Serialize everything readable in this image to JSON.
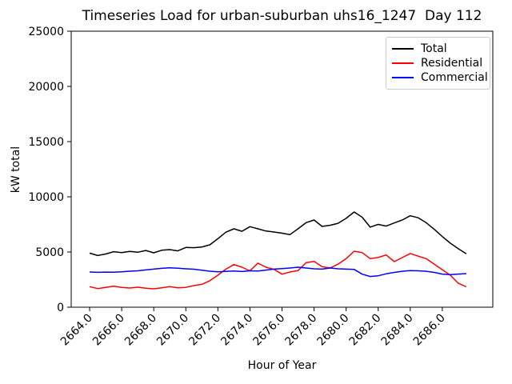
{
  "chart_data": {
    "type": "line",
    "title": "Timeseries Load for urban-suburban uhs16_1247  Day 112",
    "xlabel": "Hour of Year",
    "ylabel": "kW total",
    "xlim": [
      2662.85,
      2689.15
    ],
    "ylim": [
      0,
      25000
    ],
    "grid": false,
    "legend_position": "upper right",
    "xtick_labels": [
      "2664.0",
      "2666.0",
      "2668.0",
      "2670.0",
      "2672.0",
      "2674.0",
      "2676.0",
      "2678.0",
      "2680.0",
      "2682.0",
      "2684.0",
      "2686.0"
    ],
    "ytick_labels": [
      "0",
      "5000",
      "10000",
      "15000",
      "20000",
      "25000"
    ],
    "x": [
      2664.0,
      2664.5,
      2665.0,
      2665.5,
      2666.0,
      2666.5,
      2667.0,
      2667.5,
      2668.0,
      2668.5,
      2669.0,
      2669.5,
      2670.0,
      2670.5,
      2671.0,
      2671.5,
      2672.0,
      2672.5,
      2673.0,
      2673.5,
      2674.0,
      2674.5,
      2675.0,
      2675.5,
      2676.0,
      2676.5,
      2677.0,
      2677.5,
      2678.0,
      2678.5,
      2679.0,
      2679.5,
      2680.0,
      2680.5,
      2681.0,
      2681.5,
      2682.0,
      2682.5,
      2683.0,
      2683.5,
      2684.0,
      2684.5,
      2685.0,
      2685.5,
      2686.0,
      2686.5,
      2687.0,
      2687.5
    ],
    "series": [
      {
        "name": "Total",
        "color": "#000000",
        "values": [
          4900,
          4680,
          4820,
          5030,
          4950,
          5050,
          4980,
          5140,
          4930,
          5160,
          5220,
          5100,
          5410,
          5390,
          5450,
          5650,
          6200,
          6800,
          7100,
          6880,
          7300,
          7100,
          6900,
          6810,
          6700,
          6580,
          7100,
          7660,
          7900,
          7320,
          7420,
          7600,
          8050,
          8620,
          8150,
          7250,
          7500,
          7350,
          7630,
          7900,
          8280,
          8100,
          7650,
          7050,
          6400,
          5800,
          5300,
          4830
        ]
      },
      {
        "name": "Residential",
        "color": "#ff0000",
        "values": [
          1860,
          1690,
          1790,
          1900,
          1790,
          1740,
          1810,
          1720,
          1670,
          1760,
          1860,
          1760,
          1800,
          1960,
          2070,
          2400,
          2900,
          3450,
          3860,
          3620,
          3300,
          3990,
          3620,
          3430,
          2990,
          3190,
          3310,
          4030,
          4150,
          3670,
          3550,
          3900,
          4400,
          5070,
          4950,
          4400,
          4500,
          4730,
          4130,
          4490,
          4860,
          4620,
          4400,
          3890,
          3400,
          2900,
          2170,
          1850
        ]
      },
      {
        "name": "Commercial",
        "color": "#0000ff",
        "values": [
          3190,
          3160,
          3180,
          3170,
          3200,
          3260,
          3300,
          3380,
          3450,
          3520,
          3570,
          3530,
          3480,
          3440,
          3350,
          3260,
          3200,
          3240,
          3280,
          3230,
          3300,
          3280,
          3360,
          3450,
          3500,
          3550,
          3620,
          3550,
          3480,
          3450,
          3550,
          3480,
          3450,
          3430,
          2990,
          2780,
          2850,
          3020,
          3150,
          3250,
          3320,
          3300,
          3250,
          3150,
          3000,
          2950,
          3000,
          3040
        ]
      }
    ]
  }
}
